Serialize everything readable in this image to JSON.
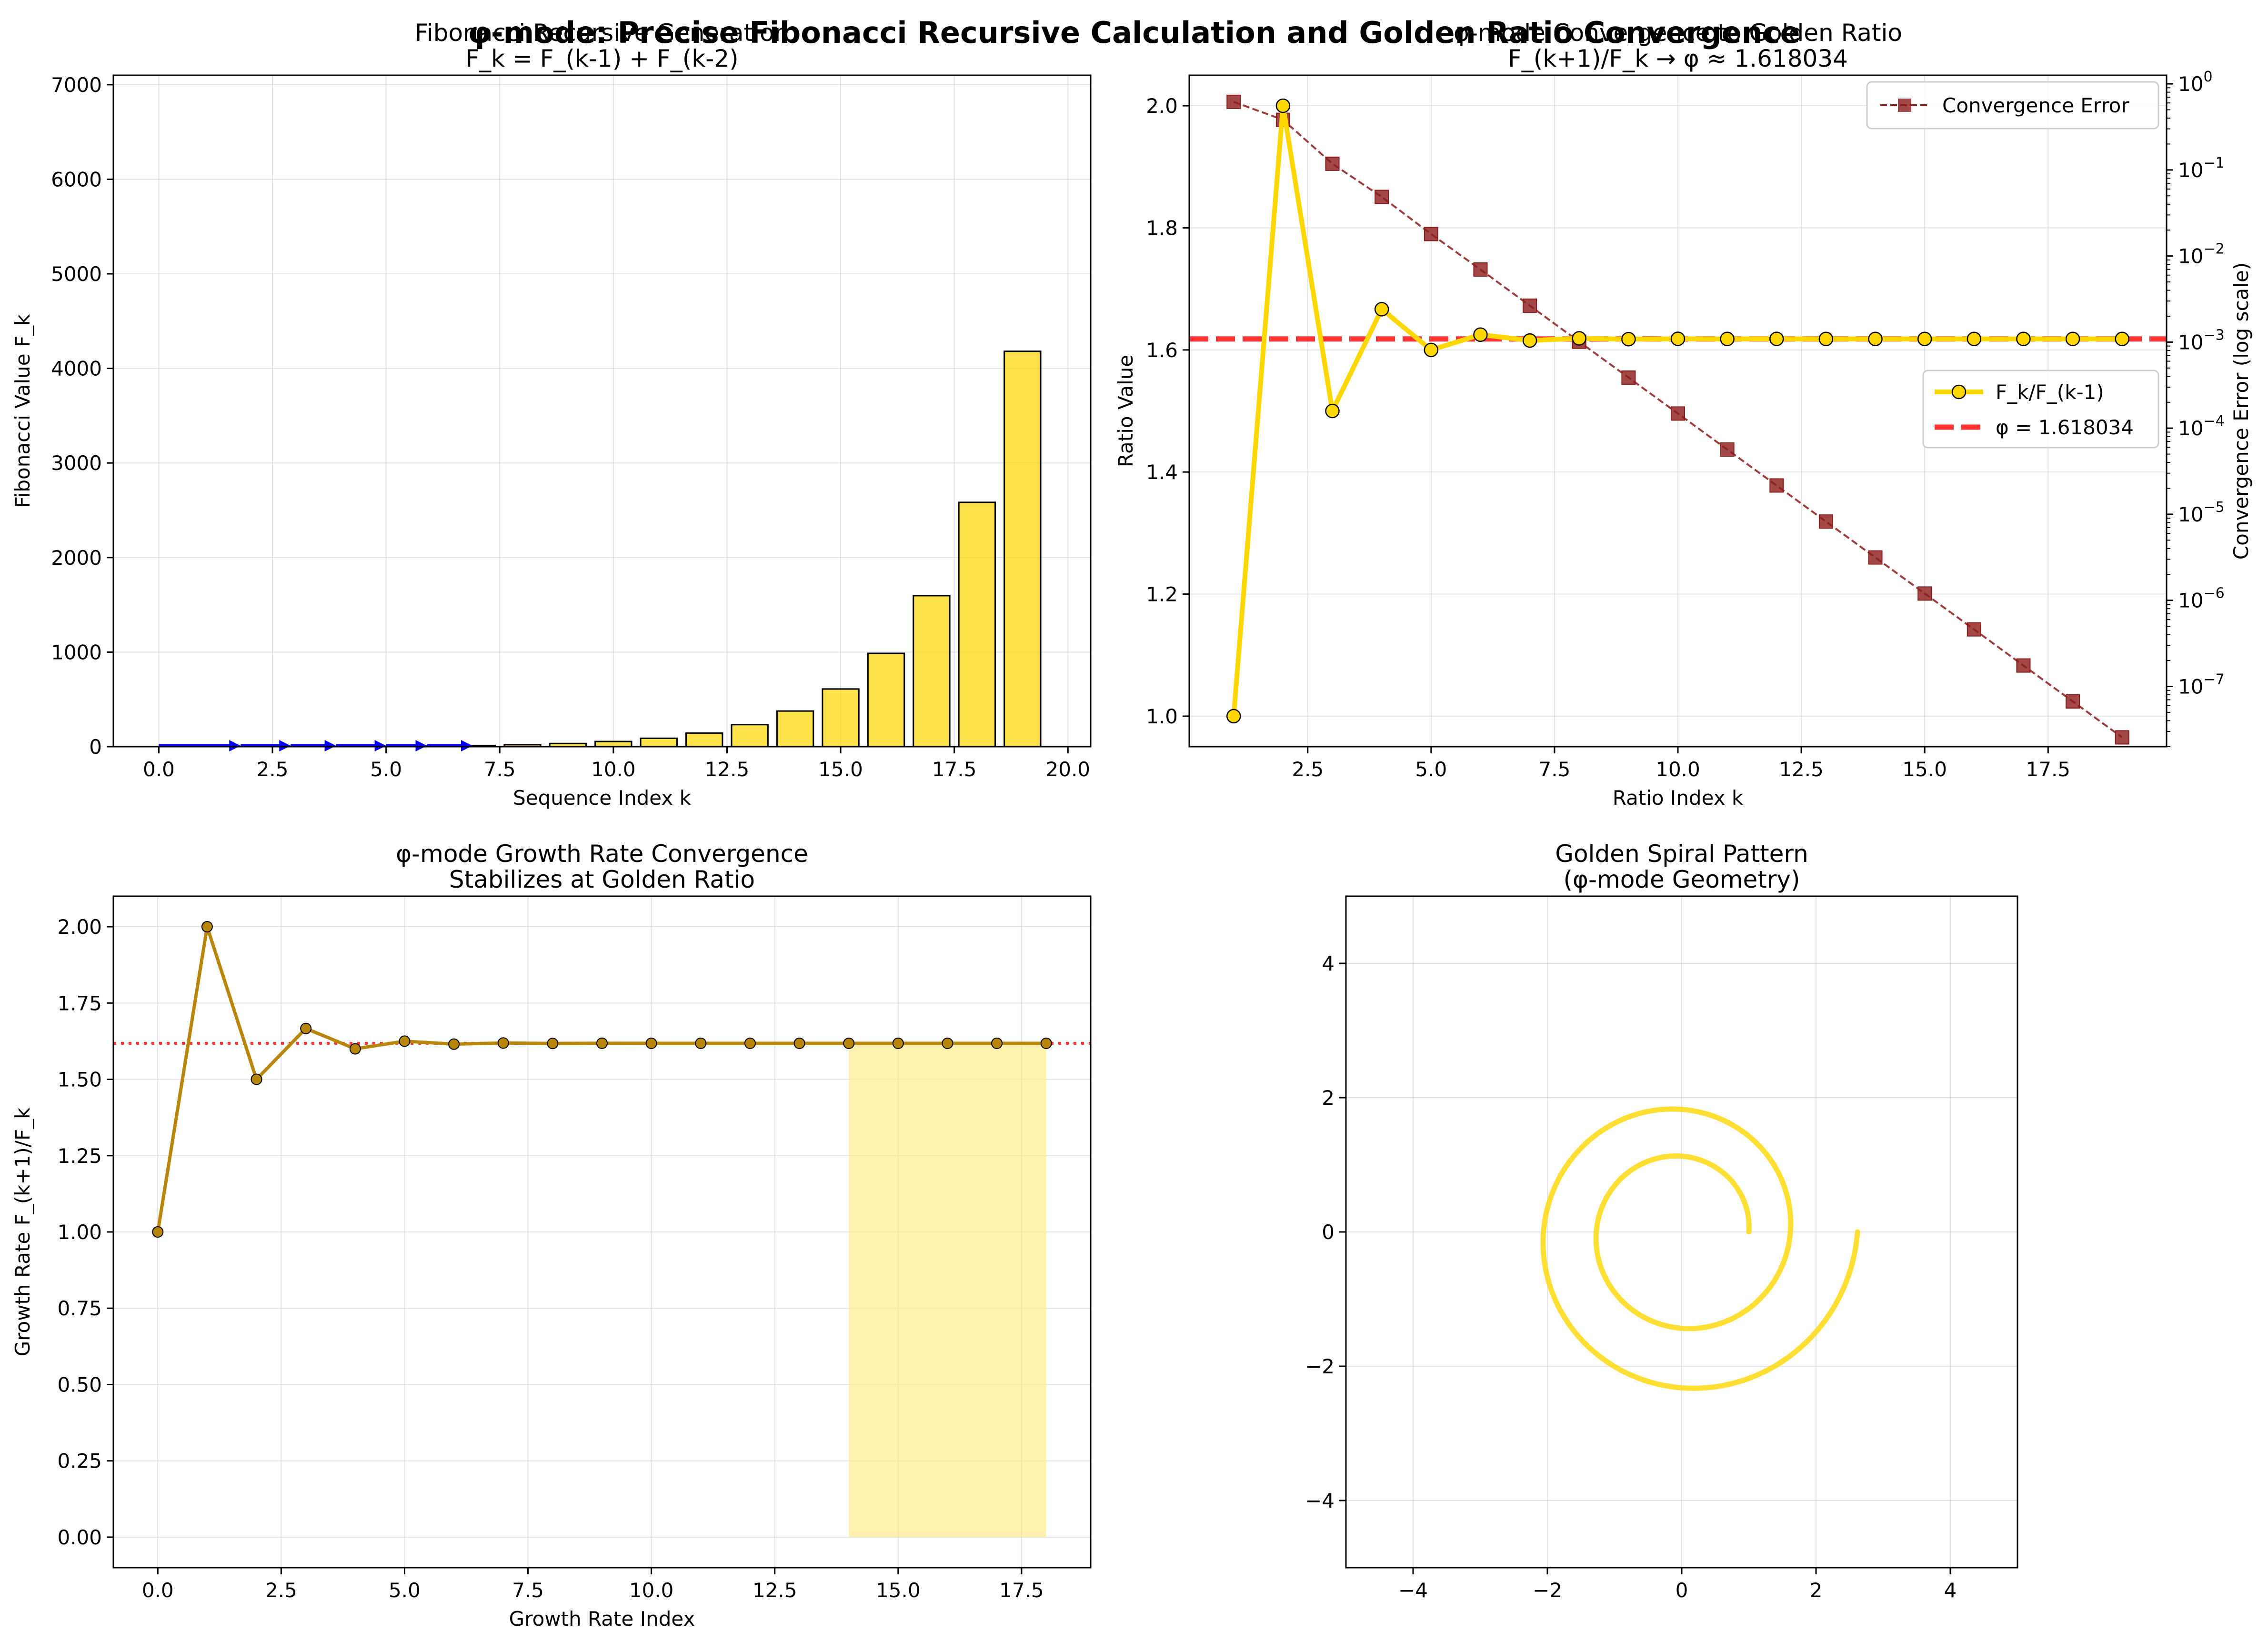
{
  "figure": {
    "suptitle": "φ-mode: Precise Fibonacci Recursive Calculation and Golden Ratio Convergence"
  },
  "colors": {
    "gold_bar": "#FFD700",
    "gold_line": "#FFD700",
    "phi_line": "#FF0000",
    "error_line": "#8B1A1A",
    "arrow": "#0000FF",
    "growth_line": "#B8860B",
    "growth_marker": "#B8860B",
    "shade": "#FFE97A",
    "spiral": "#FFD700",
    "error_axis_label": "#8B0000"
  },
  "chart_data": [
    {
      "id": "fib",
      "type": "bar",
      "title": "Fibonacci Recursive Generation",
      "subtitle": "F_k = F_(k-1) + F_(k-2)",
      "xlabel": "Sequence Index k",
      "ylabel": "Fibonacci Value F_k",
      "xlim": [
        -1.0,
        20.5
      ],
      "ylim": [
        0,
        7100
      ],
      "xticks": [
        0.0,
        2.5,
        5.0,
        7.5,
        10.0,
        12.5,
        15.0,
        17.5,
        20.0
      ],
      "xtick_labels": [
        "0.0",
        "2.5",
        "5.0",
        "7.5",
        "10.0",
        "12.5",
        "15.0",
        "17.5",
        "20.0"
      ],
      "yticks": [
        0,
        1000,
        2000,
        3000,
        4000,
        5000,
        6000,
        7000
      ],
      "ytick_labels": [
        "0",
        "1000",
        "2000",
        "3000",
        "4000",
        "5000",
        "6000",
        "7000"
      ],
      "x": [
        0,
        1,
        2,
        3,
        4,
        5,
        6,
        7,
        8,
        9,
        10,
        11,
        12,
        13,
        14,
        15,
        16,
        17,
        18,
        19
      ],
      "values": [
        0,
        1,
        1,
        2,
        3,
        5,
        8,
        13,
        21,
        34,
        55,
        89,
        144,
        233,
        377,
        610,
        987,
        1597,
        2584,
        4181
      ],
      "arrows": [
        [
          0,
          1.8
        ],
        [
          1.8,
          2.9
        ],
        [
          2.9,
          3.9
        ],
        [
          3.9,
          5.0
        ],
        [
          5.0,
          5.9
        ],
        [
          5.9,
          6.9
        ]
      ],
      "grid": true
    },
    {
      "id": "ratio",
      "type": "line",
      "title": "φ-mode Convergence to Golden Ratio",
      "subtitle": "F_(k+1)/F_k → φ ≈ 1.618034",
      "xlabel": "Ratio Index k",
      "ylabel": "Ratio Value",
      "ylabel_right": "Convergence Error (log scale)",
      "xlim": [
        0.1,
        19.9
      ],
      "ylim": [
        0.95,
        2.05
      ],
      "xticks": [
        2.5,
        5.0,
        7.5,
        10.0,
        12.5,
        15.0,
        17.5
      ],
      "xtick_labels": [
        "2.5",
        "5.0",
        "7.5",
        "10.0",
        "12.5",
        "15.0",
        "17.5"
      ],
      "yticks": [
        1.0,
        1.2,
        1.4,
        1.6,
        1.8,
        2.0
      ],
      "ytick_labels": [
        "1.0",
        "1.2",
        "1.4",
        "1.6",
        "1.8",
        "2.0"
      ],
      "y2_exponents": [
        0,
        -1,
        -2,
        -3,
        -4,
        -5,
        -6,
        -7
      ],
      "y2lim_log10": [
        -7.7,
        0.1
      ],
      "series": [
        {
          "name": "F_k/F_(k-1)",
          "x": [
            1,
            2,
            3,
            4,
            5,
            6,
            7,
            8,
            9,
            10,
            11,
            12,
            13,
            14,
            15,
            16,
            17,
            18,
            19
          ],
          "values": [
            1.0,
            2.0,
            1.5,
            1.6667,
            1.6,
            1.625,
            1.6154,
            1.619,
            1.6176,
            1.6182,
            1.618,
            1.6181,
            1.618,
            1.618,
            1.618,
            1.618,
            1.618,
            1.618,
            1.618
          ]
        },
        {
          "name": "Convergence Error",
          "axis": "right",
          "x": [
            1,
            2,
            3,
            4,
            5,
            6,
            7,
            8,
            9,
            10,
            11,
            12,
            13,
            14,
            15,
            16,
            17,
            18,
            19
          ],
          "values": [
            0.618,
            0.382,
            0.118,
            0.0486,
            0.018,
            0.00697,
            0.00265,
            0.00101,
            0.000387,
            0.000148,
            5.65e-05,
            2.16e-05,
            8.23e-06,
            3.15e-06,
            1.2e-06,
            4.6e-07,
            1.75e-07,
            6.7e-08,
            2.56e-08
          ]
        }
      ],
      "hline": {
        "name": "φ = 1.618034",
        "value": 1.618034
      },
      "legend_left_placement": "center-right",
      "legend_right_placement": "upper-right",
      "grid": true
    },
    {
      "id": "growth",
      "type": "line",
      "title": "φ-mode Growth Rate Convergence",
      "subtitle": "Stabilizes at Golden Ratio",
      "xlabel": "Growth Rate Index",
      "ylabel": "Growth Rate F_(k+1)/F_k",
      "xlim": [
        -0.9,
        18.9
      ],
      "ylim": [
        -0.1,
        2.1
      ],
      "xticks": [
        0.0,
        2.5,
        5.0,
        7.5,
        10.0,
        12.5,
        15.0,
        17.5
      ],
      "xtick_labels": [
        "0.0",
        "2.5",
        "5.0",
        "7.5",
        "10.0",
        "12.5",
        "15.0",
        "17.5"
      ],
      "yticks": [
        0.0,
        0.25,
        0.5,
        0.75,
        1.0,
        1.25,
        1.5,
        1.75,
        2.0
      ],
      "ytick_labels": [
        "0.00",
        "0.25",
        "0.50",
        "0.75",
        "1.00",
        "1.25",
        "1.50",
        "1.75",
        "2.00"
      ],
      "x": [
        0,
        1,
        2,
        3,
        4,
        5,
        6,
        7,
        8,
        9,
        10,
        11,
        12,
        13,
        14,
        15,
        16,
        17,
        18
      ],
      "values": [
        1.0,
        2.0,
        1.5,
        1.6667,
        1.6,
        1.625,
        1.6154,
        1.619,
        1.6176,
        1.6182,
        1.618,
        1.6181,
        1.618,
        1.618,
        1.618,
        1.618,
        1.618,
        1.618,
        1.618
      ],
      "hline_value": 1.618034,
      "shade": {
        "x0": 14,
        "x1": 18,
        "y0": 0,
        "y1": 1.618034
      },
      "grid": true
    },
    {
      "id": "spiral",
      "type": "line",
      "title": "Golden Spiral Pattern",
      "subtitle": "(φ-mode Geometry)",
      "xlim": [
        -5,
        5
      ],
      "ylim": [
        -5,
        5
      ],
      "xticks": [
        -4,
        -2,
        0,
        2,
        4
      ],
      "xtick_labels": [
        "−4",
        "−2",
        "0",
        "2",
        "4"
      ],
      "yticks": [
        -4,
        -2,
        0,
        2,
        4
      ],
      "ytick_labels": [
        "−4",
        "−2",
        "0",
        "2",
        "4"
      ],
      "spiral": {
        "r0": 1.0,
        "growth_per_turn": 1.618034,
        "turns": 2.0
      },
      "grid": true
    }
  ]
}
